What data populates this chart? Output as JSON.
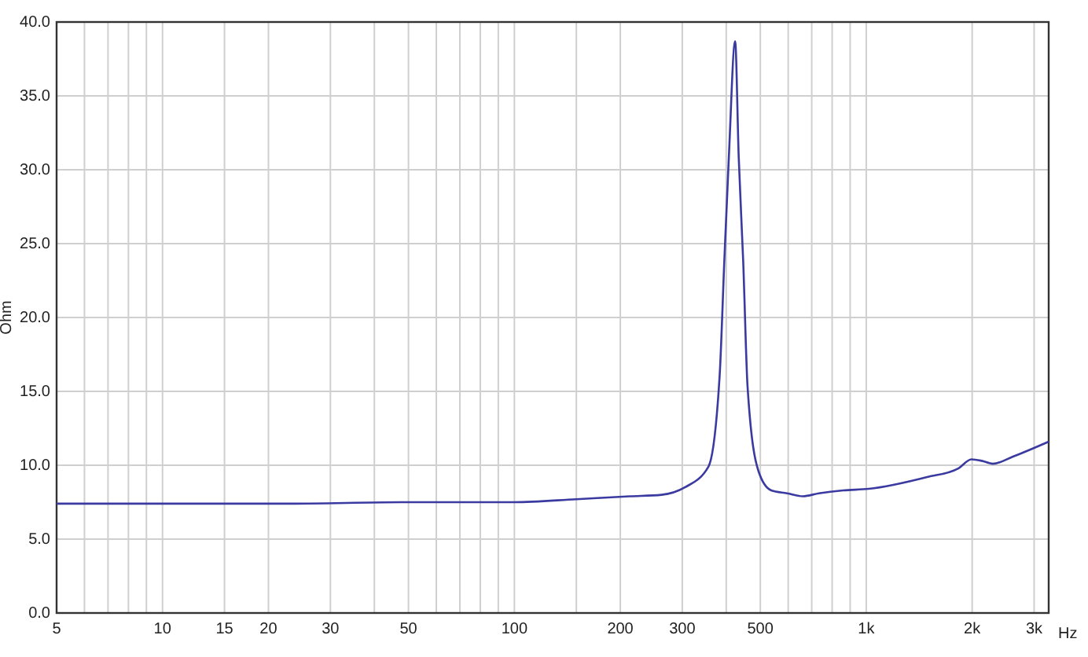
{
  "chart_data": {
    "type": "line",
    "xlabel": "Hz",
    "ylabel": "Ohm",
    "log": "x",
    "grid": true,
    "marker": "none",
    "line_style": "solid",
    "xlim": [
      5,
      3300
    ],
    "ylim": [
      0,
      40
    ],
    "xticks": [
      5,
      {
        "value": 6,
        "label": null
      },
      {
        "value": 7,
        "label": null
      },
      {
        "value": 8,
        "label": null
      },
      {
        "value": 9,
        "label": null
      },
      10,
      15,
      20,
      30,
      {
        "value": 40,
        "label": null
      },
      50,
      {
        "value": 60,
        "label": null
      },
      {
        "value": 70,
        "label": null
      },
      {
        "value": 80,
        "label": null
      },
      {
        "value": 90,
        "label": null
      },
      100,
      {
        "value": 150,
        "label": null
      },
      200,
      300,
      {
        "value": 400,
        "label": null
      },
      500,
      {
        "value": 600,
        "label": null
      },
      {
        "value": 700,
        "label": null
      },
      {
        "value": 800,
        "label": null
      },
      {
        "value": 900,
        "label": null
      },
      {
        "value": 1000,
        "label": "1k"
      },
      {
        "value": 2000,
        "label": "2k"
      },
      {
        "value": 3000,
        "label": "3k"
      }
    ],
    "yticks": [
      {
        "value": 0,
        "label": "0.0"
      },
      {
        "value": 5,
        "label": "5.0"
      },
      {
        "value": 10,
        "label": "10.0"
      },
      {
        "value": 15,
        "label": "15.0"
      },
      {
        "value": 20,
        "label": "20.0"
      },
      {
        "value": 25,
        "label": "25.0"
      },
      {
        "value": 30,
        "label": "30.0"
      },
      {
        "value": 35,
        "label": "35.0"
      },
      {
        "value": 40,
        "label": "40.0"
      }
    ],
    "series": [
      {
        "color": "#3a3aa0",
        "x": [
          5,
          10,
          22,
          50,
          74,
          100,
          150,
          213,
          262,
          305,
          356,
          383,
          395,
          407,
          424,
          434,
          447,
          460,
          494,
          537,
          596,
          660,
          733,
          860,
          1015,
          1490,
          1830,
          1990,
          2130,
          2290,
          2620,
          3300
        ],
        "values": [
          7.4,
          7.4,
          7.4,
          7.5,
          7.5,
          7.5,
          7.7,
          7.9,
          8.0,
          8.5,
          9.9,
          16,
          23.8,
          30.9,
          38.7,
          30.9,
          23.8,
          15.3,
          9.6,
          8.3,
          8.1,
          7.9,
          8.1,
          8.3,
          8.4,
          9.2,
          9.8,
          10.4,
          10.3,
          10.1,
          10.6,
          11.6
        ]
      }
    ]
  }
}
